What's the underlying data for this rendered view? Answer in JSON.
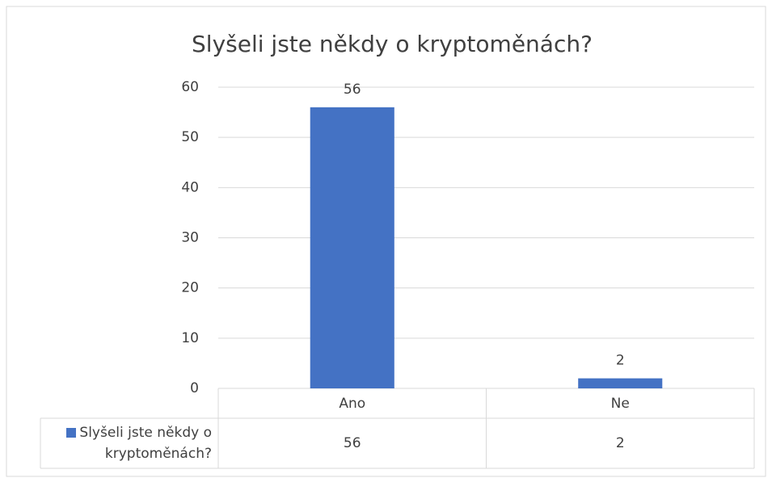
{
  "chart_data": {
    "type": "bar",
    "title": "Slyšeli jste někdy o kryptoměnách?",
    "categories": [
      "Ano",
      "Ne"
    ],
    "series": [
      {
        "name": "Slyšeli jste někdy o kryptoměnách?",
        "color": "#4472c4",
        "values": [
          56,
          2
        ]
      }
    ],
    "ylim": [
      0,
      60
    ],
    "yticks": [
      0,
      10,
      20,
      30,
      40,
      50,
      60
    ],
    "grid": true,
    "data_table": true
  }
}
